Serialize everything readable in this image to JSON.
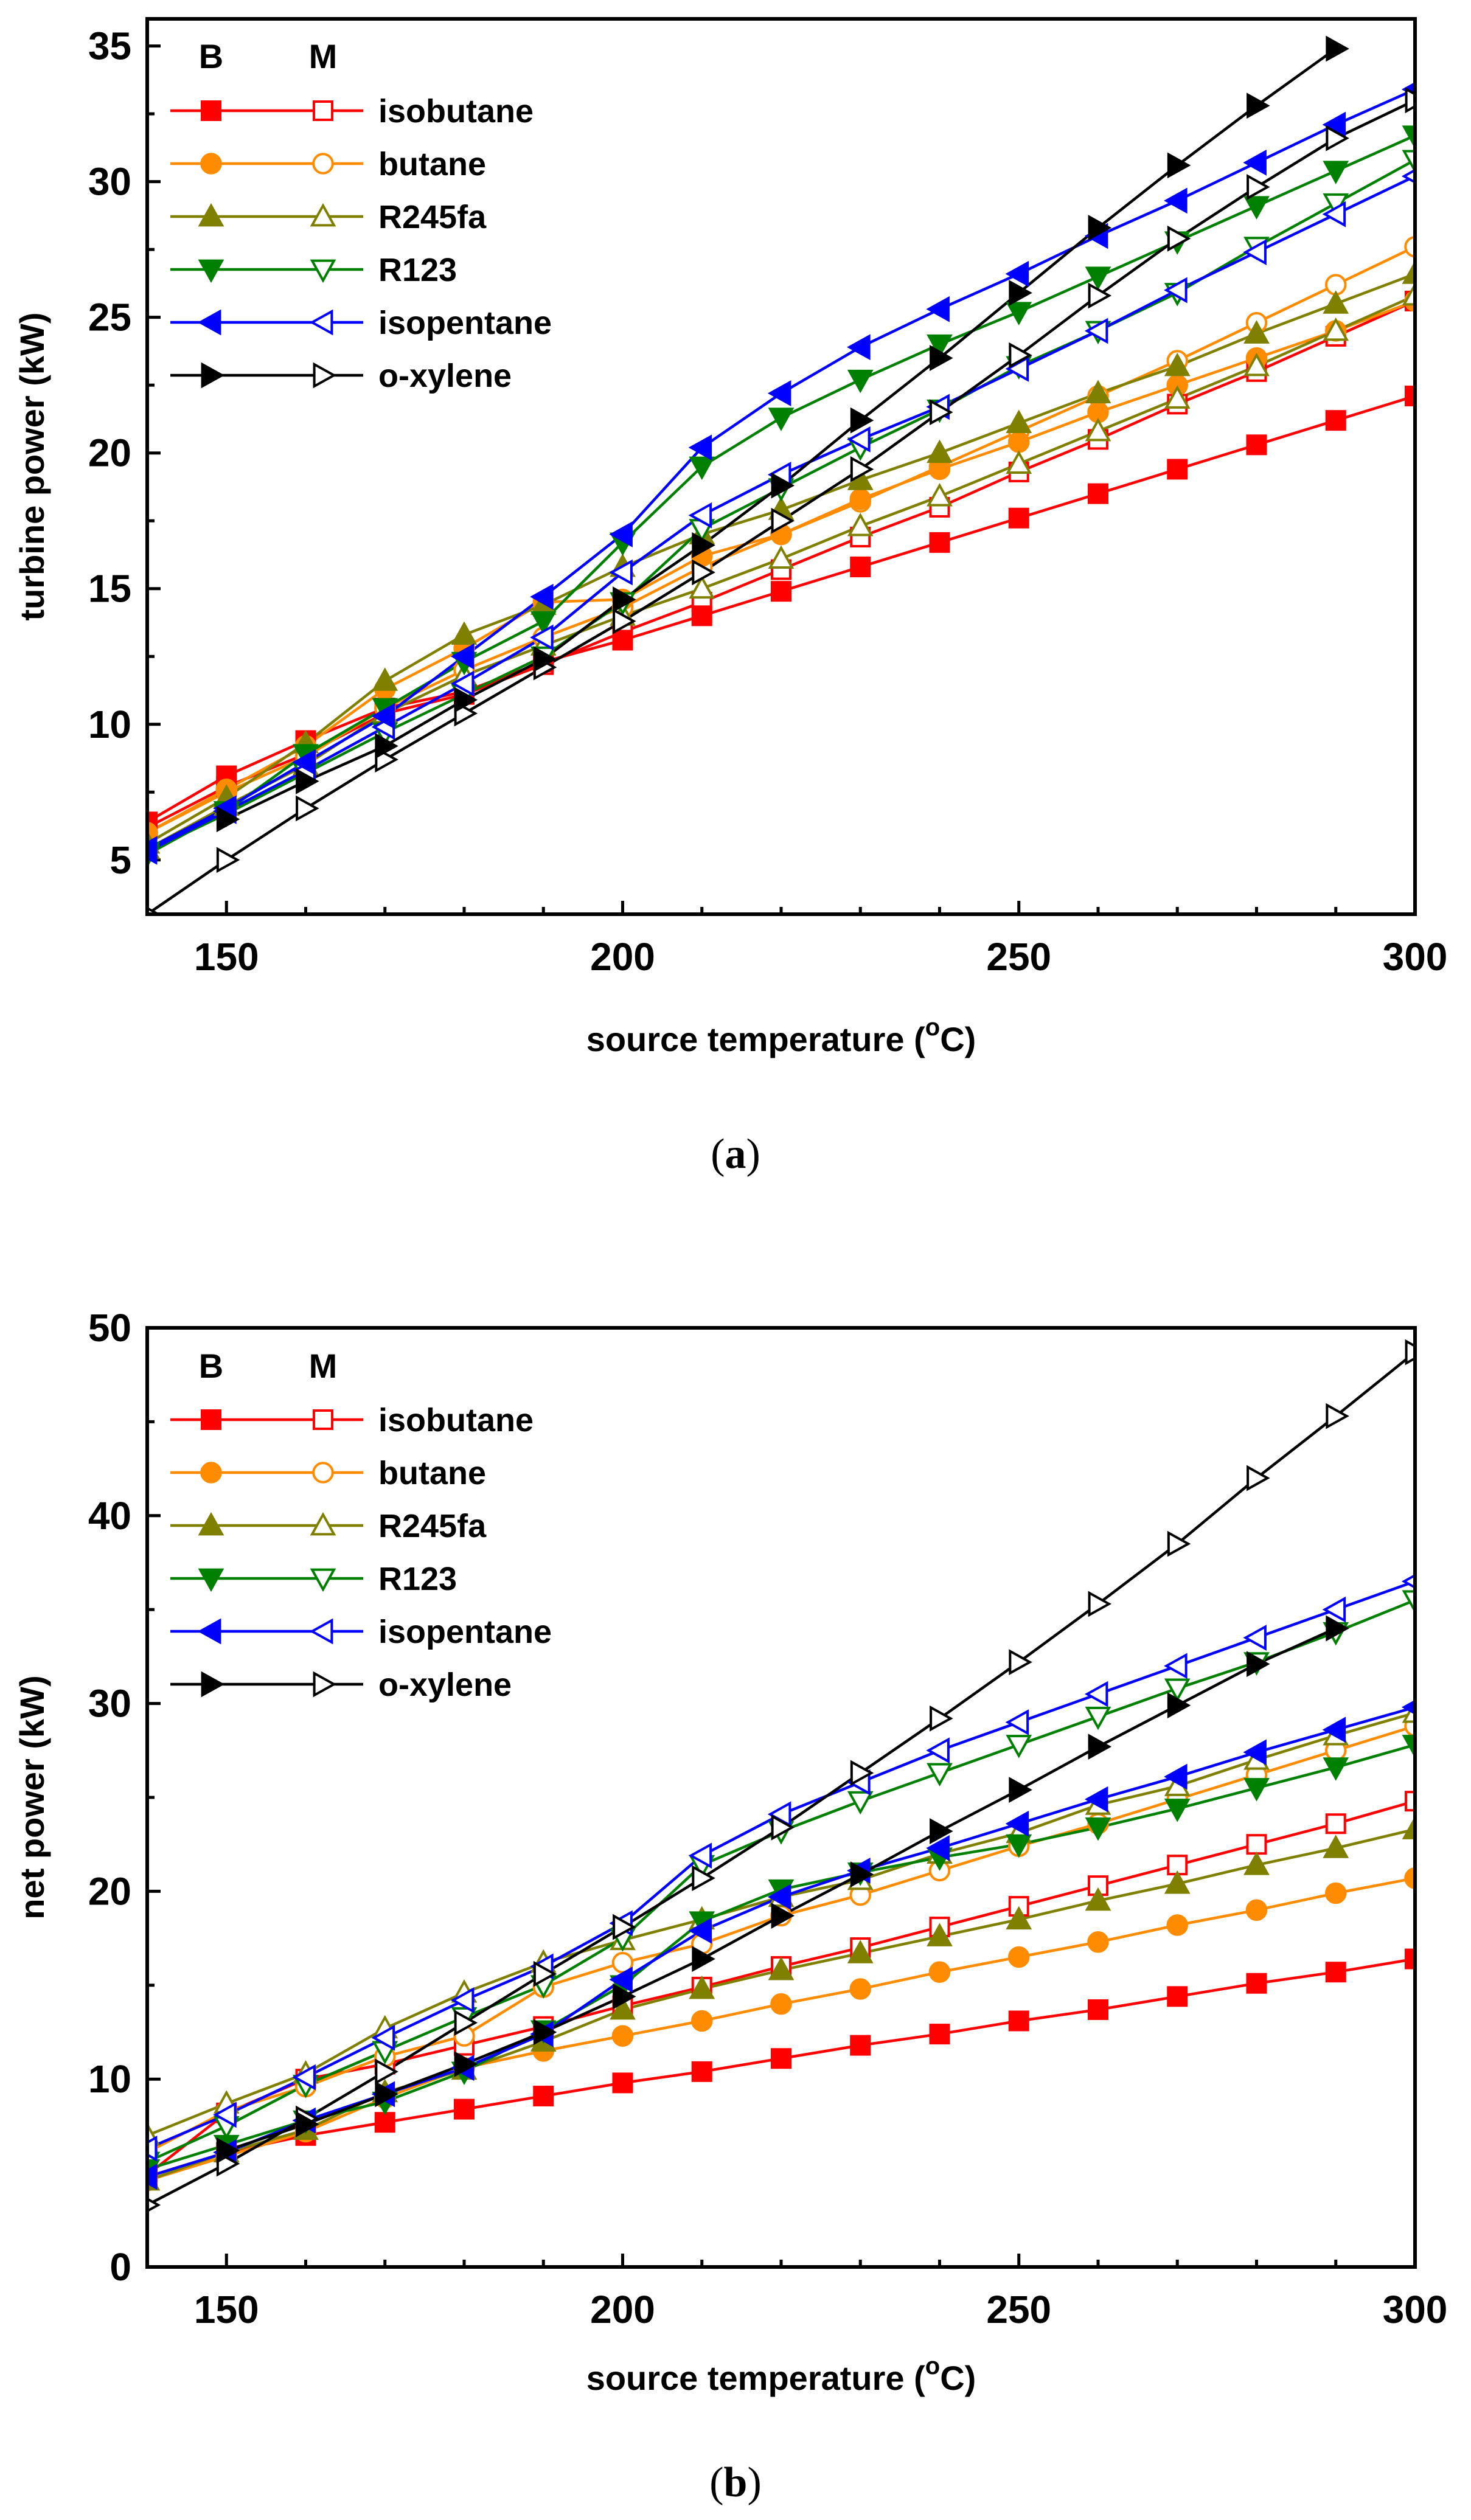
{
  "chart_data": [
    {
      "type": "line",
      "caption": "(a)",
      "caption_letter": "a",
      "xlabel": "source temperature (",
      "xlabel_unit": "C)",
      "xlabel_sup": "o",
      "ylabel": "turbine power (kW)",
      "xlim": [
        140,
        300
      ],
      "ylim": [
        3,
        36
      ],
      "xticks": [
        150,
        200,
        250,
        300
      ],
      "yticks": [
        5,
        10,
        15,
        20,
        25,
        30,
        35
      ],
      "legend_heads": [
        "B",
        "M"
      ],
      "x": [
        140,
        150,
        160,
        170,
        180,
        190,
        200,
        210,
        220,
        230,
        240,
        250,
        260,
        270,
        280,
        290,
        300
      ],
      "series": [
        {
          "name": "isobutane",
          "color": "#ff0000",
          "marker": "square",
          "B": [
            6.4,
            8.1,
            9.4,
            10.6,
            11.2,
            12.3,
            13.1,
            14.0,
            14.9,
            15.8,
            16.7,
            17.6,
            18.5,
            19.4,
            20.3,
            21.2,
            22.1
          ],
          "M": [
            6.2,
            7.7,
            8.9,
            10.4,
            11.1,
            12.2,
            13.4,
            14.5,
            15.7,
            16.9,
            18.0,
            19.3,
            20.5,
            21.8,
            23.0,
            24.3,
            25.6
          ]
        },
        {
          "name": "butane",
          "color": "#ff8c00",
          "marker": "circle",
          "B": [
            6.0,
            7.6,
            9.2,
            11.3,
            12.8,
            14.5,
            14.6,
            16.2,
            17.0,
            18.3,
            19.4,
            20.4,
            21.5,
            22.5,
            23.5,
            24.5,
            25.6
          ],
          "M": [
            6.0,
            7.5,
            8.8,
            10.6,
            12.0,
            13.2,
            14.3,
            15.8,
            17.0,
            18.2,
            19.5,
            20.8,
            22.1,
            23.4,
            24.8,
            26.2,
            27.6
          ]
        },
        {
          "name": "R245fa",
          "color": "#808000",
          "marker": "triangle-up",
          "B": [
            5.6,
            7.3,
            9.3,
            11.6,
            13.3,
            14.4,
            15.8,
            17.0,
            17.9,
            19.0,
            20.0,
            21.1,
            22.2,
            23.2,
            24.4,
            25.5,
            26.6
          ],
          "M": [
            5.4,
            7.0,
            8.5,
            10.4,
            11.8,
            12.9,
            14.0,
            15.0,
            16.1,
            17.3,
            18.4,
            19.6,
            20.8,
            22.0,
            23.2,
            24.5,
            25.8
          ]
        },
        {
          "name": "R123",
          "color": "#008000",
          "marker": "triangle-down",
          "B": [
            5.2,
            6.8,
            8.9,
            10.6,
            12.3,
            13.8,
            16.7,
            19.5,
            21.3,
            22.7,
            24.0,
            25.2,
            26.5,
            27.8,
            29.1,
            30.4,
            31.7
          ],
          "M": [
            5.3,
            6.7,
            8.2,
            9.7,
            11.1,
            12.5,
            14.5,
            17.2,
            18.7,
            20.2,
            21.6,
            23.2,
            24.5,
            25.9,
            27.6,
            29.2,
            30.8
          ]
        },
        {
          "name": "isopentane",
          "color": "#0000ff",
          "marker": "triangle-left",
          "B": [
            5.4,
            6.9,
            8.6,
            10.3,
            12.5,
            14.7,
            17.0,
            20.2,
            22.2,
            23.9,
            25.3,
            26.6,
            28.0,
            29.3,
            30.7,
            32.1,
            33.4
          ],
          "M": [
            5.3,
            6.8,
            8.3,
            9.9,
            11.5,
            13.2,
            15.6,
            17.7,
            19.2,
            20.5,
            21.7,
            23.1,
            24.5,
            26.0,
            27.4,
            28.8,
            30.2
          ]
        },
        {
          "name": "o-xylene",
          "color": "#000000",
          "marker": "triangle-right",
          "B": [
            null,
            6.5,
            7.9,
            9.2,
            10.9,
            12.4,
            14.6,
            16.6,
            18.8,
            21.2,
            23.5,
            25.9,
            28.3,
            30.6,
            32.8,
            34.9,
            null
          ],
          "M": [
            3.0,
            5.0,
            6.9,
            8.7,
            10.4,
            12.1,
            13.8,
            15.6,
            17.5,
            19.4,
            21.5,
            23.6,
            25.8,
            27.9,
            29.8,
            31.6,
            33.0
          ]
        }
      ]
    },
    {
      "type": "line",
      "caption": "(b)",
      "caption_letter": "b",
      "xlabel": "source temperature (",
      "xlabel_unit": "C)",
      "xlabel_sup": "o",
      "ylabel": "net power (kW)",
      "xlim": [
        140,
        300
      ],
      "ylim": [
        0,
        50
      ],
      "xticks": [
        150,
        200,
        250,
        300
      ],
      "yticks": [
        0,
        10,
        20,
        30,
        40,
        50
      ],
      "legend_heads": [
        "B",
        "M"
      ],
      "x": [
        140,
        150,
        160,
        170,
        180,
        190,
        200,
        210,
        220,
        230,
        240,
        250,
        260,
        270,
        280,
        290,
        300
      ],
      "series": [
        {
          "name": "isobutane",
          "color": "#ff0000",
          "marker": "square",
          "B": [
            4.8,
            6.1,
            7.0,
            7.7,
            8.4,
            9.1,
            9.8,
            10.4,
            11.1,
            11.8,
            12.4,
            13.1,
            13.7,
            14.4,
            15.1,
            15.7,
            16.4
          ],
          "M": [
            4.9,
            8.2,
            10.0,
            10.8,
            11.8,
            12.8,
            13.9,
            14.9,
            16.0,
            17.0,
            18.1,
            19.2,
            20.3,
            21.4,
            22.5,
            23.6,
            24.8
          ]
        },
        {
          "name": "butane",
          "color": "#ff8c00",
          "marker": "circle",
          "B": [
            4.6,
            5.9,
            7.2,
            9.0,
            10.6,
            11.5,
            12.3,
            13.1,
            14.0,
            14.8,
            15.7,
            16.5,
            17.3,
            18.2,
            19.0,
            19.9,
            20.7
          ],
          "M": [
            6.1,
            8.3,
            9.6,
            11.2,
            12.3,
            14.9,
            16.2,
            17.2,
            18.7,
            19.8,
            21.1,
            22.4,
            23.6,
            24.9,
            26.2,
            27.5,
            28.8
          ]
        },
        {
          "name": "R245fa",
          "color": "#808000",
          "marker": "triangle-up",
          "B": [
            4.6,
            6.1,
            7.3,
            9.3,
            10.5,
            12.0,
            13.7,
            14.8,
            15.8,
            16.7,
            17.6,
            18.5,
            19.5,
            20.4,
            21.4,
            22.3,
            23.3
          ],
          "M": [
            7.0,
            8.7,
            10.3,
            12.7,
            14.6,
            16.2,
            17.4,
            18.5,
            19.7,
            20.6,
            22.0,
            23.1,
            24.6,
            25.6,
            27.0,
            28.3,
            29.5
          ]
        },
        {
          "name": "R123",
          "color": "#008000",
          "marker": "triangle-down",
          "B": [
            5.2,
            6.5,
            7.8,
            8.8,
            10.4,
            12.6,
            15.0,
            18.4,
            20.1,
            21.0,
            21.8,
            22.5,
            23.4,
            24.4,
            25.5,
            26.6,
            27.8
          ],
          "M": [
            5.6,
            7.5,
            9.7,
            11.5,
            13.3,
            15.0,
            17.5,
            21.4,
            23.2,
            24.8,
            26.3,
            27.8,
            29.3,
            30.8,
            32.2,
            33.8,
            35.5
          ]
        },
        {
          "name": "isopentane",
          "color": "#0000ff",
          "marker": "triangle-left",
          "B": [
            4.8,
            6.1,
            7.8,
            9.2,
            10.6,
            12.4,
            15.3,
            17.9,
            19.7,
            21.1,
            22.3,
            23.6,
            24.9,
            26.1,
            27.4,
            28.6,
            29.8
          ],
          "M": [
            6.3,
            8.1,
            10.1,
            12.2,
            14.2,
            16.0,
            18.3,
            21.9,
            24.1,
            25.8,
            27.5,
            29.0,
            30.5,
            32.0,
            33.5,
            35.0,
            36.5
          ]
        },
        {
          "name": "o-xylene",
          "color": "#000000",
          "marker": "triangle-right",
          "B": [
            null,
            6.2,
            7.6,
            9.2,
            10.8,
            12.5,
            14.4,
            16.4,
            18.7,
            20.9,
            23.2,
            25.4,
            27.7,
            29.9,
            32.1,
            34.0,
            null
          ],
          "M": [
            3.3,
            5.5,
            7.9,
            10.4,
            13.0,
            15.6,
            18.1,
            20.7,
            23.4,
            26.3,
            29.2,
            32.2,
            35.3,
            38.5,
            42.0,
            45.3,
            48.7
          ]
        }
      ]
    }
  ]
}
